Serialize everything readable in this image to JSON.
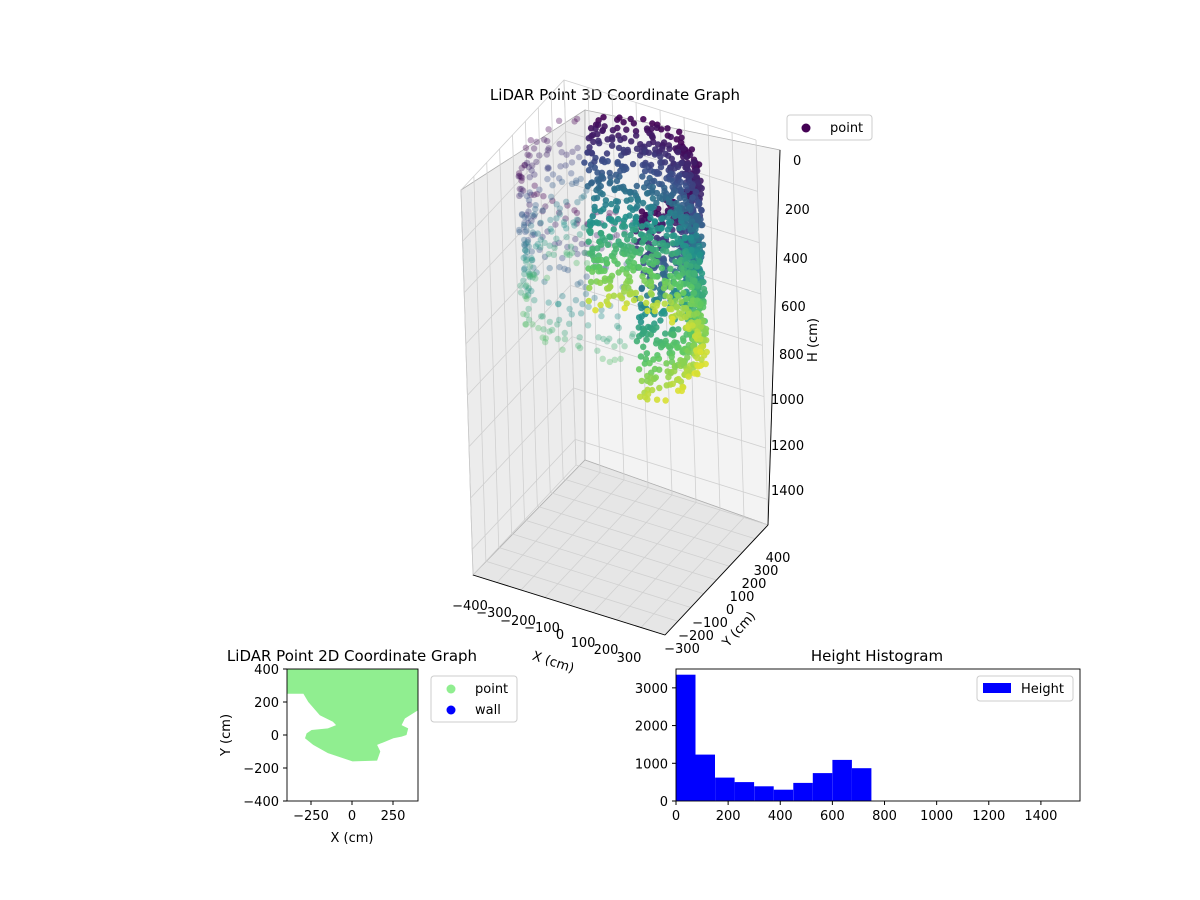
{
  "colors": {
    "point_2d": "#90ee90",
    "wall_2d": "#0000ff",
    "histogram_bar": "#0000ff",
    "pane": "#f2f2f2",
    "grid": "#d0d0d0",
    "legend_point_3d": "#440154",
    "colormap": [
      "#440154",
      "#3b528b",
      "#21918c",
      "#5ec962",
      "#fde725"
    ]
  },
  "chart_data": [
    {
      "type": "scatter",
      "projection": "3d",
      "colormap": "viridis",
      "title": "LiDAR Point 3D Coordinate Graph",
      "xlabel": "X (cm)",
      "ylabel": "Y (cm)",
      "zlabel": "H (cm)",
      "xlim": [
        -400,
        400
      ],
      "ylim": [
        -400,
        400
      ],
      "zlim": [
        1500,
        0
      ],
      "x_ticks": [
        "−400",
        "−300",
        "−200",
        "−100",
        "0",
        "100",
        "200",
        "300"
      ],
      "y_ticks": [
        "−300",
        "−200",
        "−100",
        "0",
        "100",
        "200",
        "300",
        "400"
      ],
      "z_ticks": [
        "0",
        "200",
        "400",
        "600",
        "800",
        "1000",
        "1200",
        "1400"
      ],
      "legend": [
        "point"
      ],
      "legend_position": "upper right",
      "grid": true
    },
    {
      "type": "scatter",
      "title": "LiDAR Point 2D Coordinate Graph",
      "xlabel": "X (cm)",
      "ylabel": "Y (cm)",
      "xlim": [
        -400,
        400
      ],
      "ylim": [
        -400,
        400
      ],
      "x_ticks": [
        "−250",
        "0",
        "250"
      ],
      "y_ticks": [
        "400",
        "200",
        "0",
        "−200",
        "−400"
      ],
      "series": [
        {
          "name": "point",
          "color": "#90ee90"
        },
        {
          "name": "wall",
          "color": "#0000ff"
        }
      ],
      "point_region": [
        [
          -400,
          400
        ],
        [
          -400,
          250
        ],
        [
          -300,
          250
        ],
        [
          -270,
          200
        ],
        [
          -200,
          120
        ],
        [
          -120,
          80
        ],
        [
          -100,
          60
        ],
        [
          -150,
          40
        ],
        [
          -250,
          30
        ],
        [
          -280,
          10
        ],
        [
          -290,
          -20
        ],
        [
          -240,
          -60
        ],
        [
          -150,
          -110
        ],
        [
          0,
          -160
        ],
        [
          150,
          -155
        ],
        [
          170,
          -100
        ],
        [
          150,
          -60
        ],
        [
          200,
          -40
        ],
        [
          250,
          -20
        ],
        [
          300,
          -10
        ],
        [
          330,
          0
        ],
        [
          340,
          40
        ],
        [
          300,
          60
        ],
        [
          320,
          100
        ],
        [
          400,
          150
        ],
        [
          400,
          400
        ]
      ],
      "legend_position": "outside right",
      "grid": false
    },
    {
      "type": "bar",
      "subtype": "histogram",
      "title": "Height Histogram",
      "xlim": [
        0,
        1550
      ],
      "ylim": [
        0,
        3500
      ],
      "x_ticks": [
        "0",
        "200",
        "400",
        "600",
        "800",
        "1000",
        "1200",
        "1400"
      ],
      "y_ticks": [
        "0",
        "1000",
        "2000",
        "3000"
      ],
      "bin_width": 75,
      "bins_start": [
        0,
        75,
        150,
        225,
        300,
        375,
        450,
        525,
        600,
        675
      ],
      "series": [
        {
          "name": "Height",
          "values": [
            3350,
            1230,
            620,
            500,
            390,
            300,
            480,
            740,
            1090,
            870
          ]
        }
      ],
      "legend_position": "upper right",
      "grid": false
    }
  ]
}
